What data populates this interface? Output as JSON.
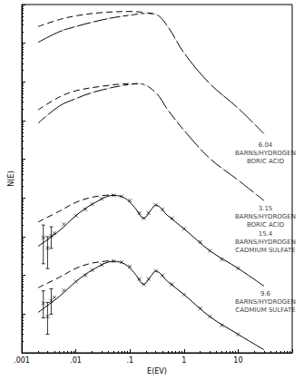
{
  "chart_data": {
    "type": "line",
    "xlabel": "E(EV)",
    "ylabel": "N(E)",
    "log": true,
    "grid": false,
    "tick_labels": "x",
    "color": "#000000",
    "xlim": [
      0.001,
      100
    ],
    "xticks": [
      {
        "value": 0.001,
        "label": ".001"
      },
      {
        "value": 0.01,
        "label": ".01"
      },
      {
        "value": 0.1,
        "label": ".1"
      },
      1,
      10
    ],
    "ylim": [
      1,
      1000000000
    ],
    "yticks": [
      1,
      10,
      100,
      1000,
      10000,
      100000,
      1000000,
      10000000,
      100000000,
      1000000000
    ],
    "series": [
      {
        "type": "scatter",
        "marker": "circle",
        "x": [
          0.0022,
          0.003,
          0.004,
          0.006,
          0.01,
          0.02,
          0.04,
          0.07,
          0.1,
          0.15,
          0.2,
          0.3,
          0.5,
          0.7,
          1,
          2,
          3,
          5,
          10,
          20
        ],
        "values": [
          86000000,
          123000000,
          140000000,
          200000000,
          270000000,
          350000000,
          410000000,
          510000000,
          530000000,
          560000000,
          590000000,
          560000000,
          270000000,
          123000000,
          56000000,
          20000000,
          9000000,
          4100000,
          2100000,
          860000
        ]
      },
      {
        "type": "line",
        "line_style": "solid",
        "x": [
          0.002,
          0.005,
          0.01,
          0.02,
          0.05,
          0.1,
          0.2,
          0.3,
          0.5,
          1,
          3,
          10,
          30
        ],
        "values": [
          105000000,
          200000000,
          270000000,
          350000000,
          460000000,
          530000000,
          590000000,
          560000000,
          270000000,
          56000000,
          9000000,
          2100000,
          460000
        ]
      },
      {
        "type": "line",
        "line_style": "dashed",
        "x": [
          0.002,
          0.005,
          0.01,
          0.03,
          0.1,
          0.2,
          0.3
        ],
        "values": [
          270000000,
          410000000,
          510000000,
          620000000,
          660000000,
          620000000,
          560000000
        ]
      },
      {
        "type": "scatter",
        "marker": "circle",
        "x": [
          0.002,
          0.0025,
          0.003,
          0.004,
          0.006,
          0.01,
          0.02,
          0.04,
          0.07,
          0.1,
          0.15,
          0.2,
          0.3,
          0.5,
          0.7,
          1,
          2,
          3,
          5,
          10,
          20
        ],
        "values": [
          660000,
          950000,
          1300000,
          1600000,
          2400000,
          3700000,
          5300000,
          6900000,
          8100000,
          8600000,
          9000000,
          8100000,
          5300000,
          1900000,
          950000,
          560000,
          200000,
          105000,
          56000,
          29000,
          13000
        ]
      },
      {
        "type": "line",
        "line_style": "solid",
        "x": [
          0.002,
          0.005,
          0.01,
          0.02,
          0.05,
          0.1,
          0.15,
          0.3,
          0.5,
          1,
          3,
          10,
          30
        ],
        "values": [
          860000,
          2400000,
          3700000,
          5300000,
          7300000,
          8600000,
          9000000,
          5300000,
          1900000,
          560000,
          105000,
          29000,
          8600
        ]
      },
      {
        "type": "line",
        "line_style": "dashed",
        "x": [
          0.002,
          0.005,
          0.01,
          0.03,
          0.1,
          0.15
        ],
        "values": [
          1900000,
          4100000,
          5900000,
          7700000,
          9000000,
          9000000
        ]
      },
      {
        "type": "scatter",
        "marker": "cross",
        "x": [
          0.0025,
          0.003,
          0.0035,
          0.004,
          0.006,
          0.01,
          0.015,
          0.02,
          0.03,
          0.05,
          0.07,
          0.1,
          0.15,
          0.18,
          0.22,
          0.3,
          0.4,
          0.6,
          1,
          2,
          3,
          5,
          10
        ],
        "values": [
          950,
          507,
          1050,
          1230,
          2100,
          3500,
          5100,
          6900,
          9500,
          11700,
          11100,
          8600,
          4100,
          3000,
          4100,
          6600,
          5100,
          3000,
          1600,
          731,
          433,
          257,
          152
        ],
        "y_low": [
          200,
          150,
          500,
          null,
          null,
          null,
          null,
          null,
          null,
          null,
          null,
          null,
          null,
          null,
          null,
          null,
          null,
          null,
          null,
          null,
          null,
          null,
          null
        ],
        "y_high": [
          2000,
          1000,
          1800,
          null,
          null,
          null,
          null,
          null,
          null,
          null,
          null,
          null,
          null,
          null,
          null,
          null,
          null,
          null,
          null,
          null,
          null,
          null,
          null
        ]
      },
      {
        "type": "line",
        "line_style": "solid",
        "x": [
          0.002,
          0.005,
          0.01,
          0.02,
          0.05,
          0.08,
          0.12,
          0.18,
          0.25,
          0.3,
          0.5,
          1,
          3,
          10,
          30
        ],
        "values": [
          562,
          1440,
          3500,
          6900,
          11700,
          10000,
          5900,
          3000,
          5100,
          6600,
          3500,
          1600,
          433,
          152,
          53
        ]
      },
      {
        "type": "line",
        "line_style": "dashed",
        "x": [
          0.002,
          0.005,
          0.01,
          0.02,
          0.05
        ],
        "values": [
          2400,
          4600,
          7700,
          10500,
          12300
        ]
      },
      {
        "type": "scatter",
        "marker": "cross",
        "x": [
          0.0025,
          0.003,
          0.0035,
          0.004,
          0.006,
          0.01,
          0.015,
          0.02,
          0.03,
          0.05,
          0.07,
          0.1,
          0.15,
          0.18,
          0.22,
          0.3,
          0.4,
          0.6,
          1,
          2,
          3,
          5,
          10
        ],
        "values": [
          19,
          8.6,
          22,
          27,
          41,
          69,
          100,
          137,
          187,
          231,
          219,
          169,
          81,
          59,
          81,
          130,
          100,
          59,
          32,
          14,
          8.6,
          5.1,
          3
        ],
        "y_low": [
          8,
          3,
          10,
          null,
          null,
          null,
          null,
          null,
          null,
          null,
          null,
          null,
          null,
          null,
          null,
          null,
          null,
          null,
          null,
          null,
          null,
          null,
          null
        ],
        "y_high": [
          40,
          20,
          45,
          null,
          null,
          null,
          null,
          null,
          null,
          null,
          null,
          null,
          null,
          null,
          null,
          null,
          null,
          null,
          null,
          null,
          null,
          null,
          null
        ]
      },
      {
        "type": "line",
        "line_style": "solid",
        "x": [
          0.002,
          0.005,
          0.01,
          0.02,
          0.05,
          0.08,
          0.12,
          0.18,
          0.25,
          0.3,
          0.5,
          1,
          3,
          10,
          30
        ],
        "values": [
          11,
          29,
          69,
          137,
          231,
          197,
          117,
          59,
          100,
          130,
          69,
          32,
          8.6,
          3,
          1.2
        ]
      },
      {
        "type": "line",
        "line_style": "dashed",
        "x": [
          0.002,
          0.005,
          0.01,
          0.02,
          0.05
        ],
        "values": [
          48,
          90,
          152,
          208,
          243
        ]
      }
    ],
    "annotations": [
      {
        "text": [
          "6.04",
          "BARNS/HYDROGEN",
          "BORIC ACID"
        ],
        "x": 32,
        "y": 140000
      },
      {
        "text": [
          "3.15",
          "BARNS/HYDROGEN",
          "BORIC ACID"
        ],
        "x": 32,
        "y": 3200
      },
      {
        "text": [
          "15.4",
          "BARNS/HYDROGEN",
          "CADMIUM SULFATE"
        ],
        "x": 32,
        "y": 730
      },
      {
        "text": [
          "9.6",
          "BARNS/HYDROGEN",
          "CADMIUM SULFATE"
        ],
        "x": 32,
        "y": 21
      }
    ]
  }
}
